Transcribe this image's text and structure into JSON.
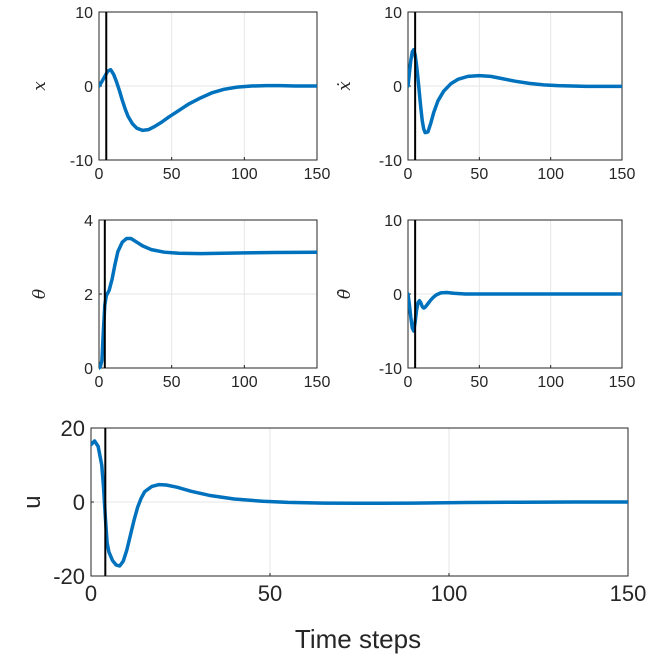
{
  "figure": {
    "xlabel": "Time steps"
  },
  "chart_data": [
    {
      "type": "line",
      "ylabel": "x",
      "xlim": [
        0,
        150
      ],
      "ylim": [
        -10,
        10
      ],
      "xticks": [
        0,
        50,
        100,
        150
      ],
      "yticks": [
        -10,
        0,
        10
      ],
      "grid": true,
      "vline_x": 5,
      "series": [
        {
          "color": "#0072BD",
          "points": [
            [
              0,
              0
            ],
            [
              2,
              0.6
            ],
            [
              4,
              1.3
            ],
            [
              6,
              2.0
            ],
            [
              8,
              2.2
            ],
            [
              10,
              1.6
            ],
            [
              12,
              0.6
            ],
            [
              14,
              -0.6
            ],
            [
              16,
              -1.9
            ],
            [
              18,
              -3.1
            ],
            [
              20,
              -4.1
            ],
            [
              23,
              -5.1
            ],
            [
              26,
              -5.7
            ],
            [
              30,
              -6.0
            ],
            [
              34,
              -5.9
            ],
            [
              38,
              -5.5
            ],
            [
              43,
              -4.9
            ],
            [
              48,
              -4.2
            ],
            [
              55,
              -3.3
            ],
            [
              62,
              -2.4
            ],
            [
              70,
              -1.6
            ],
            [
              78,
              -0.9
            ],
            [
              86,
              -0.45
            ],
            [
              95,
              -0.15
            ],
            [
              105,
              0.0
            ],
            [
              115,
              0.05
            ],
            [
              125,
              0.05
            ],
            [
              135,
              0.0
            ],
            [
              150,
              0.0
            ]
          ]
        }
      ]
    },
    {
      "type": "line",
      "ylabel": "ẋ",
      "xlim": [
        0,
        150
      ],
      "ylim": [
        -10,
        10
      ],
      "xticks": [
        0,
        50,
        100,
        150
      ],
      "yticks": [
        -10,
        0,
        10
      ],
      "grid": true,
      "vline_x": 5,
      "series": [
        {
          "color": "#0072BD",
          "points": [
            [
              0,
              0
            ],
            [
              1,
              1.8
            ],
            [
              2,
              3.5
            ],
            [
              3,
              4.6
            ],
            [
              4,
              4.9
            ],
            [
              5,
              4.2
            ],
            [
              6,
              2.8
            ],
            [
              7,
              1.0
            ],
            [
              8,
              -1.0
            ],
            [
              9,
              -3.0
            ],
            [
              10,
              -4.7
            ],
            [
              11,
              -5.8
            ],
            [
              12,
              -6.3
            ],
            [
              14,
              -6.2
            ],
            [
              16,
              -5.0
            ],
            [
              18,
              -3.6
            ],
            [
              21,
              -2.0
            ],
            [
              25,
              -0.7
            ],
            [
              30,
              0.3
            ],
            [
              35,
              0.9
            ],
            [
              42,
              1.3
            ],
            [
              50,
              1.4
            ],
            [
              58,
              1.3
            ],
            [
              66,
              1.0
            ],
            [
              75,
              0.65
            ],
            [
              85,
              0.35
            ],
            [
              95,
              0.15
            ],
            [
              105,
              0.05
            ],
            [
              115,
              0.0
            ],
            [
              125,
              -0.05
            ],
            [
              150,
              -0.05
            ]
          ]
        }
      ]
    },
    {
      "type": "line",
      "ylabel": "θ",
      "xlim": [
        0,
        150
      ],
      "ylim": [
        0,
        4
      ],
      "xticks": [
        0,
        50,
        100,
        150
      ],
      "yticks": [
        0,
        2,
        4
      ],
      "grid": true,
      "vline_x": 4,
      "series": [
        {
          "color": "#0072BD",
          "points": [
            [
              0,
              0
            ],
            [
              1,
              0.05
            ],
            [
              2,
              0.2
            ],
            [
              3,
              1.0
            ],
            [
              4,
              1.7
            ],
            [
              5,
              1.95
            ],
            [
              7,
              2.1
            ],
            [
              9,
              2.4
            ],
            [
              11,
              2.8
            ],
            [
              13,
              3.15
            ],
            [
              16,
              3.4
            ],
            [
              19,
              3.5
            ],
            [
              22,
              3.5
            ],
            [
              26,
              3.4
            ],
            [
              30,
              3.3
            ],
            [
              36,
              3.2
            ],
            [
              45,
              3.13
            ],
            [
              55,
              3.1
            ],
            [
              70,
              3.09
            ],
            [
              85,
              3.1
            ],
            [
              100,
              3.11
            ],
            [
              120,
              3.12
            ],
            [
              150,
              3.13
            ]
          ]
        }
      ]
    },
    {
      "type": "line",
      "ylabel": "θ̇",
      "xlim": [
        0,
        150
      ],
      "ylim": [
        -10,
        10
      ],
      "xticks": [
        0,
        50,
        100,
        150
      ],
      "yticks": [
        -10,
        0,
        10
      ],
      "grid": true,
      "vline_x": 5,
      "series": [
        {
          "color": "#0072BD",
          "points": [
            [
              0,
              0
            ],
            [
              1,
              -1.5
            ],
            [
              2,
              -3.2
            ],
            [
              3,
              -4.6
            ],
            [
              4,
              -5.0
            ],
            [
              5,
              -3.8
            ],
            [
              6,
              -2.2
            ],
            [
              7,
              -1.2
            ],
            [
              8,
              -0.9
            ],
            [
              9,
              -1.2
            ],
            [
              10,
              -1.7
            ],
            [
              11,
              -1.9
            ],
            [
              12,
              -1.8
            ],
            [
              14,
              -1.3
            ],
            [
              16,
              -0.8
            ],
            [
              18,
              -0.4
            ],
            [
              20,
              -0.1
            ],
            [
              23,
              0.15
            ],
            [
              27,
              0.2
            ],
            [
              32,
              0.1
            ],
            [
              40,
              0.0
            ],
            [
              60,
              0.0
            ],
            [
              100,
              0.0
            ],
            [
              150,
              0.0
            ]
          ]
        }
      ]
    },
    {
      "type": "line",
      "ylabel": "u",
      "xlim": [
        0,
        150
      ],
      "ylim": [
        -20,
        20
      ],
      "xticks": [
        0,
        50,
        100,
        150
      ],
      "yticks": [
        -20,
        0,
        20
      ],
      "grid": true,
      "vline_x": 4,
      "series": [
        {
          "color": "#0072BD",
          "points": [
            [
              0,
              15.5
            ],
            [
              1,
              16.5
            ],
            [
              2,
              15.0
            ],
            [
              3,
              10.0
            ],
            [
              3.5,
              4.0
            ],
            [
              4,
              -4.0
            ],
            [
              4.5,
              -11.0
            ],
            [
              5,
              -13.5
            ],
            [
              6,
              -15.8
            ],
            [
              7,
              -17.0
            ],
            [
              8,
              -17.3
            ],
            [
              9,
              -16.0
            ],
            [
              10,
              -13.0
            ],
            [
              11,
              -9.0
            ],
            [
              12,
              -5.0
            ],
            [
              13,
              -1.5
            ],
            [
              14,
              1.0
            ],
            [
              15,
              2.8
            ],
            [
              17,
              4.2
            ],
            [
              19,
              4.7
            ],
            [
              21,
              4.6
            ],
            [
              24,
              4.0
            ],
            [
              28,
              2.9
            ],
            [
              33,
              1.8
            ],
            [
              40,
              0.8
            ],
            [
              48,
              0.2
            ],
            [
              55,
              -0.1
            ],
            [
              65,
              -0.3
            ],
            [
              75,
              -0.35
            ],
            [
              90,
              -0.3
            ],
            [
              105,
              -0.15
            ],
            [
              120,
              -0.05
            ],
            [
              135,
              0.0
            ],
            [
              150,
              0.0
            ]
          ]
        }
      ]
    }
  ]
}
